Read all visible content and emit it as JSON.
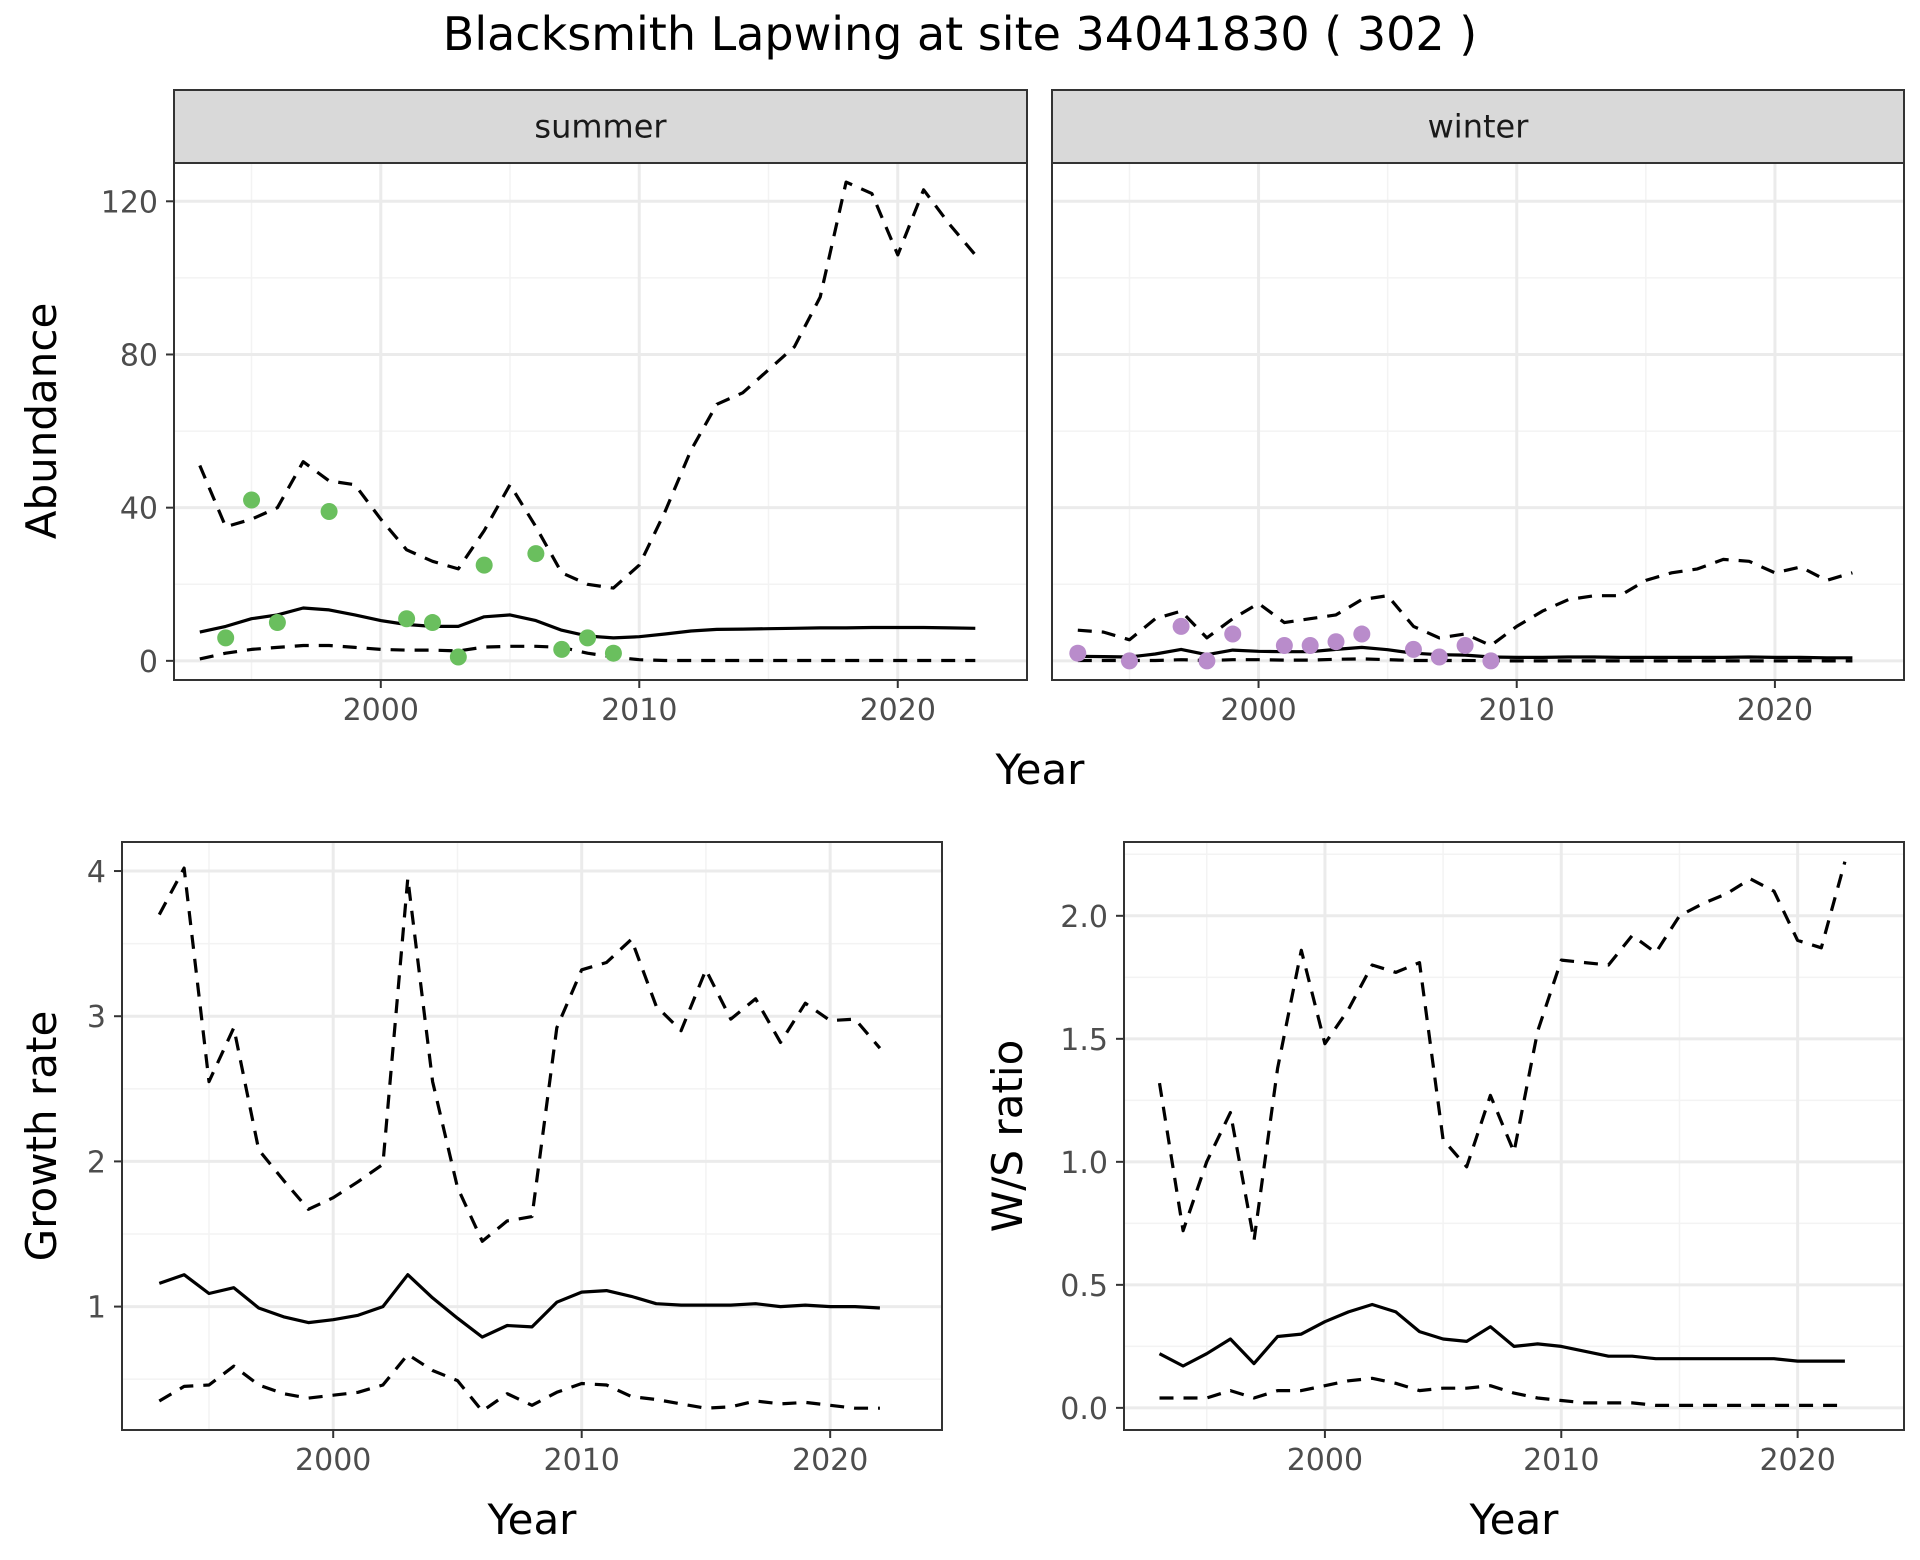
{
  "title": "Blacksmith Lapwing at site 34041830 ( 302 )",
  "colors": {
    "summer_points": "#6abf5e",
    "winter_points": "#b98ccb",
    "line": "#000000",
    "grid_major": "#ebebeb",
    "strip_bg": "#d9d9d9"
  },
  "chart_data": [
    {
      "type": "line",
      "facet": "summer",
      "ylabel": "Abundance",
      "xlim": [
        1992,
        2025
      ],
      "ylim": [
        -5,
        130
      ],
      "xticks": [
        2000,
        2010,
        2020
      ],
      "yticks": [
        0,
        40,
        80,
        120
      ],
      "grid": true,
      "series": [
        {
          "style": "dashed",
          "x": [
            1993,
            1994,
            1995,
            1996,
            1997,
            1998,
            1999,
            2000,
            2001,
            2002,
            2003,
            2004,
            2005,
            2006,
            2007,
            2008,
            2009,
            2010,
            2011,
            2012,
            2013,
            2014,
            2015,
            2016,
            2017,
            2018,
            2019,
            2020,
            2021,
            2022,
            2023
          ],
          "y": [
            51,
            35,
            37,
            40,
            52,
            47,
            46,
            37,
            29,
            26,
            24,
            34,
            46,
            35,
            23,
            20,
            19,
            25,
            39,
            55,
            67,
            70,
            76,
            82,
            95,
            125,
            122,
            106,
            123,
            114,
            106
          ]
        },
        {
          "style": "solid",
          "x": [
            1993,
            1994,
            1995,
            1996,
            1997,
            1998,
            1999,
            2000,
            2001,
            2002,
            2003,
            2004,
            2005,
            2006,
            2007,
            2008,
            2009,
            2010,
            2011,
            2012,
            2013,
            2014,
            2015,
            2016,
            2017,
            2018,
            2019,
            2020,
            2021,
            2022,
            2023
          ],
          "y": [
            7.5,
            9,
            11,
            12,
            13.8,
            13.3,
            12,
            10.5,
            9.5,
            9,
            9,
            11.5,
            12,
            10.5,
            8,
            6.5,
            6,
            6.3,
            7,
            7.8,
            8.2,
            8.3,
            8.4,
            8.5,
            8.6,
            8.6,
            8.7,
            8.7,
            8.7,
            8.6,
            8.5
          ]
        },
        {
          "style": "dashed",
          "x": [
            1993,
            1994,
            1995,
            1996,
            1997,
            1998,
            1999,
            2000,
            2001,
            2002,
            2003,
            2004,
            2005,
            2006,
            2007,
            2008,
            2009,
            2010,
            2011,
            2012,
            2013,
            2014,
            2015,
            2016,
            2017,
            2018,
            2019,
            2020,
            2021,
            2022,
            2023
          ],
          "y": [
            0.5,
            2,
            3,
            3.5,
            4,
            4,
            3.5,
            3,
            2.8,
            2.8,
            2.6,
            3.6,
            3.8,
            3.8,
            3.5,
            2,
            1,
            0.3,
            0.1,
            0.1,
            0.1,
            0.1,
            0.1,
            0.1,
            0.1,
            0.1,
            0.1,
            0.1,
            0.1,
            0.1,
            0.1
          ]
        }
      ],
      "points": {
        "x": [
          1994,
          1995,
          1996,
          1998,
          2001,
          2002,
          2003,
          2004,
          2006,
          2007,
          2008,
          2009
        ],
        "y": [
          6,
          42,
          10,
          39,
          11,
          10,
          1,
          25,
          28,
          3,
          6,
          2
        ]
      }
    },
    {
      "type": "line",
      "facet": "winter",
      "xlim": [
        1992,
        2025
      ],
      "ylim": [
        -5,
        130
      ],
      "xticks": [
        2000,
        2010,
        2020
      ],
      "yticks": [
        0,
        40,
        80,
        120
      ],
      "grid": true,
      "series": [
        {
          "style": "dashed",
          "x": [
            1993,
            1994,
            1995,
            1996,
            1997,
            1998,
            1999,
            2000,
            2001,
            2002,
            2003,
            2004,
            2005,
            2006,
            2007,
            2008,
            2009,
            2010,
            2011,
            2012,
            2013,
            2014,
            2015,
            2016,
            2017,
            2018,
            2019,
            2020,
            2021,
            2022,
            2023
          ],
          "y": [
            8,
            7.5,
            5.5,
            11,
            13,
            6,
            11,
            15,
            10,
            11,
            12,
            16,
            17,
            9,
            6,
            7,
            4,
            9,
            13,
            16,
            17,
            17,
            21,
            23,
            24,
            26.5,
            26,
            23,
            24.5,
            21,
            23
          ]
        },
        {
          "style": "solid",
          "x": [
            1993,
            1994,
            1995,
            1996,
            1997,
            1998,
            1999,
            2000,
            2001,
            2002,
            2003,
            2004,
            2005,
            2006,
            2007,
            2008,
            2009,
            2010,
            2011,
            2012,
            2013,
            2014,
            2015,
            2016,
            2017,
            2018,
            2019,
            2020,
            2021,
            2022,
            2023
          ],
          "y": [
            1.2,
            1.1,
            1,
            1.8,
            3,
            1.6,
            2.8,
            2.5,
            2.4,
            2.4,
            3,
            3.5,
            2.9,
            2,
            1.6,
            1.5,
            1,
            0.9,
            0.9,
            1,
            1,
            0.9,
            0.9,
            0.9,
            0.9,
            0.9,
            1,
            0.9,
            0.9,
            0.8,
            0.8
          ]
        },
        {
          "style": "dashed",
          "x": [
            1993,
            1994,
            1995,
            1996,
            1997,
            1998,
            1999,
            2000,
            2001,
            2002,
            2003,
            2004,
            2005,
            2006,
            2007,
            2008,
            2009,
            2010,
            2011,
            2012,
            2013,
            2014,
            2015,
            2016,
            2017,
            2018,
            2019,
            2020,
            2021,
            2022,
            2023
          ],
          "y": [
            0.1,
            0.1,
            0.1,
            0.1,
            0.3,
            0.1,
            0.3,
            0.3,
            0.2,
            0.2,
            0.4,
            0.5,
            0.3,
            0.1,
            0.1,
            0.1,
            0.05,
            0,
            0,
            0,
            0,
            0,
            0,
            0,
            0,
            0,
            0,
            0,
            0,
            0,
            0
          ]
        }
      ],
      "points": {
        "x": [
          1993,
          1995,
          1997,
          1998,
          1999,
          2001,
          2002,
          2003,
          2004,
          2006,
          2007,
          2008,
          2009
        ],
        "y": [
          2,
          0,
          9,
          0,
          7,
          4,
          4,
          5,
          7,
          3,
          1,
          4,
          0
        ]
      }
    },
    {
      "type": "line",
      "xlabel": "Year",
      "ylabel": "Growth rate",
      "xlim": [
        1991.5,
        2024.5
      ],
      "ylim": [
        0.15,
        4.2
      ],
      "xticks": [
        2000,
        2010,
        2020
      ],
      "yticks": [
        1,
        2,
        3,
        4
      ],
      "grid": true,
      "series": [
        {
          "style": "dashed",
          "x": [
            1993,
            1994,
            1995,
            1996,
            1997,
            1998,
            1999,
            2000,
            2001,
            2002,
            2003,
            2004,
            2005,
            2006,
            2007,
            2008,
            2009,
            2010,
            2011,
            2012,
            2013,
            2014,
            2015,
            2016,
            2017,
            2018,
            2019,
            2020,
            2021,
            2022
          ],
          "y": [
            3.7,
            4.02,
            2.55,
            2.92,
            2.08,
            1.87,
            1.67,
            1.75,
            1.86,
            1.98,
            3.95,
            2.55,
            1.82,
            1.45,
            1.59,
            1.62,
            2.92,
            3.32,
            3.37,
            3.53,
            3.07,
            2.9,
            3.32,
            2.98,
            3.12,
            2.82,
            3.09,
            2.97,
            2.98,
            2.78
          ]
        },
        {
          "style": "solid",
          "x": [
            1993,
            1994,
            1995,
            1996,
            1997,
            1998,
            1999,
            2000,
            2001,
            2002,
            2003,
            2004,
            2005,
            2006,
            2007,
            2008,
            2009,
            2010,
            2011,
            2012,
            2013,
            2014,
            2015,
            2016,
            2017,
            2018,
            2019,
            2020,
            2021,
            2022
          ],
          "y": [
            1.16,
            1.22,
            1.09,
            1.13,
            0.99,
            0.93,
            0.89,
            0.91,
            0.94,
            1.0,
            1.22,
            1.06,
            0.92,
            0.79,
            0.87,
            0.86,
            1.03,
            1.1,
            1.11,
            1.07,
            1.02,
            1.01,
            1.01,
            1.01,
            1.02,
            1.0,
            1.01,
            1.0,
            1.0,
            0.99
          ]
        },
        {
          "style": "dashed",
          "x": [
            1993,
            1994,
            1995,
            1996,
            1997,
            1998,
            1999,
            2000,
            2001,
            2002,
            2003,
            2004,
            2005,
            2006,
            2007,
            2008,
            2009,
            2010,
            2011,
            2012,
            2013,
            2014,
            2015,
            2016,
            2017,
            2018,
            2019,
            2020,
            2021,
            2022
          ],
          "y": [
            0.35,
            0.45,
            0.46,
            0.59,
            0.46,
            0.4,
            0.37,
            0.39,
            0.41,
            0.46,
            0.67,
            0.56,
            0.49,
            0.28,
            0.4,
            0.32,
            0.41,
            0.47,
            0.46,
            0.38,
            0.36,
            0.33,
            0.3,
            0.31,
            0.35,
            0.33,
            0.34,
            0.32,
            0.3,
            0.3
          ]
        }
      ]
    },
    {
      "type": "line",
      "xlabel": "Year",
      "ylabel": "W/S ratio",
      "xlim": [
        1991.5,
        2024.5
      ],
      "ylim": [
        -0.09,
        2.3
      ],
      "xticks": [
        2000,
        2010,
        2020
      ],
      "yticks": [
        0.0,
        0.5,
        1.0,
        1.5,
        2.0
      ],
      "ytick_labels": [
        "0.0",
        "0.5",
        "1.0",
        "1.5",
        "2.0"
      ],
      "grid": true,
      "series": [
        {
          "style": "dashed",
          "x": [
            1993,
            1994,
            1995,
            1996,
            1997,
            1998,
            1999,
            2000,
            2001,
            2002,
            2003,
            2004,
            2005,
            2006,
            2007,
            2008,
            2009,
            2010,
            2011,
            2012,
            2013,
            2014,
            2015,
            2016,
            2017,
            2018,
            2019,
            2020,
            2021,
            2022
          ],
          "y": [
            1.32,
            0.72,
            1.0,
            1.2,
            0.68,
            1.38,
            1.86,
            1.48,
            1.62,
            1.8,
            1.77,
            1.81,
            1.09,
            0.98,
            1.27,
            1.04,
            1.53,
            1.82,
            1.81,
            1.8,
            1.92,
            1.85,
            2.0,
            2.05,
            2.09,
            2.15,
            2.1,
            1.9,
            1.87,
            2.22
          ]
        },
        {
          "style": "solid",
          "x": [
            1993,
            1994,
            1995,
            1996,
            1997,
            1998,
            1999,
            2000,
            2001,
            2002,
            2003,
            2004,
            2005,
            2006,
            2007,
            2008,
            2009,
            2010,
            2011,
            2012,
            2013,
            2014,
            2015,
            2016,
            2017,
            2018,
            2019,
            2020,
            2021,
            2022
          ],
          "y": [
            0.22,
            0.17,
            0.22,
            0.28,
            0.18,
            0.29,
            0.3,
            0.35,
            0.39,
            0.42,
            0.39,
            0.31,
            0.28,
            0.27,
            0.33,
            0.25,
            0.26,
            0.25,
            0.23,
            0.21,
            0.21,
            0.2,
            0.2,
            0.2,
            0.2,
            0.2,
            0.2,
            0.19,
            0.19,
            0.19
          ]
        },
        {
          "style": "dashed",
          "x": [
            1993,
            1994,
            1995,
            1996,
            1997,
            1998,
            1999,
            2000,
            2001,
            2002,
            2003,
            2004,
            2005,
            2006,
            2007,
            2008,
            2009,
            2010,
            2011,
            2012,
            2013,
            2014,
            2015,
            2016,
            2017,
            2018,
            2019,
            2020,
            2021,
            2022
          ],
          "y": [
            0.04,
            0.04,
            0.04,
            0.07,
            0.04,
            0.07,
            0.07,
            0.09,
            0.11,
            0.12,
            0.1,
            0.07,
            0.08,
            0.08,
            0.09,
            0.06,
            0.04,
            0.03,
            0.02,
            0.02,
            0.02,
            0.01,
            0.01,
            0.01,
            0.01,
            0.01,
            0.01,
            0.01,
            0.01,
            0.01
          ]
        }
      ]
    }
  ],
  "top_xlabel": "Year"
}
